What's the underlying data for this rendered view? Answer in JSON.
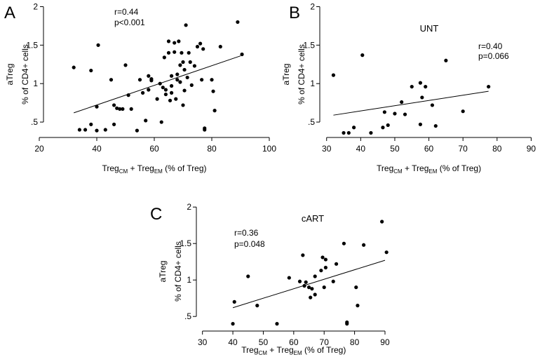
{
  "chart_data": [
    {
      "type": "scatter",
      "panel_letter": "A",
      "title": "",
      "ylabel_line1": "aTreg",
      "ylabel_line2": "% of CD4+ cells",
      "xlabel": {
        "a": "Treg",
        "a_sub": "CM",
        "plus": " + ",
        "b": "Treg",
        "b_sub": "EM",
        "tail": " (% of Treg)"
      },
      "stats": [
        "r=0.44",
        "p<0.001"
      ],
      "xlim": [
        20,
        100
      ],
      "ylim": [
        0.3,
        2.05
      ],
      "x_ticks": [
        20,
        40,
        60,
        80,
        100
      ],
      "x_tick_labels": [
        "20",
        "40",
        "60",
        "80",
        "100"
      ],
      "y_ticks": [
        0.5,
        1,
        1.5,
        2
      ],
      "y_tick_labels": [
        ".5",
        "1",
        "1.5",
        "2"
      ],
      "fit_line": [
        [
          32,
          0.62
        ],
        [
          90,
          1.36
        ]
      ],
      "points": [
        [
          32,
          1.21
        ],
        [
          34,
          0.4
        ],
        [
          36,
          0.4
        ],
        [
          38,
          1.17
        ],
        [
          38,
          0.47
        ],
        [
          40,
          0.39
        ],
        [
          40,
          0.7
        ],
        [
          40.5,
          1.5
        ],
        [
          43,
          0.4
        ],
        [
          45,
          1.05
        ],
        [
          46,
          0.72
        ],
        [
          46,
          0.47
        ],
        [
          47,
          0.68
        ],
        [
          48,
          0.67
        ],
        [
          49,
          0.67
        ],
        [
          50,
          1.24
        ],
        [
          51,
          0.85
        ],
        [
          52,
          0.67
        ],
        [
          54,
          0.39
        ],
        [
          55,
          1.05
        ],
        [
          56,
          0.88
        ],
        [
          57,
          0.52
        ],
        [
          58,
          1.1
        ],
        [
          58,
          0.92
        ],
        [
          59,
          1.04
        ],
        [
          59,
          1.06
        ],
        [
          61,
          0.8
        ],
        [
          62,
          1.0
        ],
        [
          62.5,
          0.5
        ],
        [
          63,
          0.95
        ],
        [
          63.5,
          1.34
        ],
        [
          64,
          0.92
        ],
        [
          64,
          0.86
        ],
        [
          65,
          1.55
        ],
        [
          65,
          1.4
        ],
        [
          65.5,
          0.78
        ],
        [
          66,
          1.1
        ],
        [
          66,
          0.97
        ],
        [
          66,
          0.88
        ],
        [
          67,
          1.53
        ],
        [
          67,
          1.41
        ],
        [
          67.5,
          0.8
        ],
        [
          68,
          1.12
        ],
        [
          68,
          1.05
        ],
        [
          68.5,
          1.55
        ],
        [
          69,
          1.24
        ],
        [
          69,
          1.02
        ],
        [
          69.5,
          1.4
        ],
        [
          70,
          1.28
        ],
        [
          70,
          0.72
        ],
        [
          70.5,
          1.18
        ],
        [
          70.5,
          0.91
        ],
        [
          71,
          1.76
        ],
        [
          71.5,
          1.08
        ],
        [
          72,
          1.4
        ],
        [
          72.5,
          1.28
        ],
        [
          73,
          0.98
        ],
        [
          74,
          1.23
        ],
        [
          75,
          1.48
        ],
        [
          76,
          1.52
        ],
        [
          76.5,
          1.05
        ],
        [
          77,
          1.45
        ],
        [
          77.5,
          0.42
        ],
        [
          77.5,
          0.4
        ],
        [
          80,
          1.05
        ],
        [
          80.5,
          0.9
        ],
        [
          81,
          0.65
        ],
        [
          83,
          1.48
        ],
        [
          89,
          1.8
        ],
        [
          90.5,
          1.38
        ]
      ]
    },
    {
      "type": "scatter",
      "panel_letter": "B",
      "title": "UNT",
      "ylabel_line1": "aTreg",
      "ylabel_line2": "% of CD4+ cells",
      "xlabel": {
        "a": "Treg",
        "a_sub": "CM",
        "plus": " + ",
        "b": "Treg",
        "b_sub": "EM",
        "tail": " (% of Treg)"
      },
      "stats": [
        "r=0.40",
        "p=0.066"
      ],
      "xlim": [
        28,
        93
      ],
      "ylim": [
        0.3,
        2.05
      ],
      "x_ticks": [
        30,
        40,
        50,
        60,
        70,
        80,
        90
      ],
      "x_tick_labels": [
        "30",
        "40",
        "50",
        "60",
        "70",
        "80",
        "90"
      ],
      "y_ticks": [
        0.5,
        1,
        1.5,
        2
      ],
      "y_tick_labels": [
        ".5",
        "1",
        "1.5",
        "2"
      ],
      "fit_line": [
        [
          32,
          0.59
        ],
        [
          77.5,
          0.9
        ]
      ],
      "points": [
        [
          32,
          1.11
        ],
        [
          35,
          0.36
        ],
        [
          36.5,
          0.36
        ],
        [
          38,
          0.43
        ],
        [
          40.5,
          1.37
        ],
        [
          43,
          0.36
        ],
        [
          46.5,
          0.43
        ],
        [
          47,
          0.63
        ],
        [
          48,
          0.46
        ],
        [
          50,
          0.61
        ],
        [
          52,
          0.76
        ],
        [
          53,
          0.6
        ],
        [
          55,
          0.96
        ],
        [
          57.5,
          0.47
        ],
        [
          57.5,
          1.01
        ],
        [
          58,
          0.82
        ],
        [
          59,
          0.96
        ],
        [
          61,
          0.72
        ],
        [
          62,
          0.45
        ],
        [
          65,
          1.3
        ],
        [
          70,
          0.64
        ],
        [
          77.5,
          0.96
        ]
      ]
    },
    {
      "type": "scatter",
      "panel_letter": "C",
      "title": "cART",
      "ylabel_line1": "aTreg",
      "ylabel_line2": "% of CD4+ cells",
      "xlabel": {
        "a": "Treg",
        "a_sub": "CM",
        "plus": " + ",
        "b": "Treg",
        "b_sub": "EM",
        "tail": " (% of Treg)"
      },
      "stats": [
        "r=0.36",
        "p=0.048"
      ],
      "xlim": [
        28,
        93
      ],
      "ylim": [
        0.3,
        2.05
      ],
      "x_ticks": [
        30,
        40,
        50,
        60,
        70,
        80,
        90
      ],
      "x_tick_labels": [
        "30",
        "40",
        "50",
        "60",
        "70",
        "80",
        "90"
      ],
      "y_ticks": [
        0.5,
        1,
        1.5,
        2
      ],
      "y_tick_labels": [
        ".5",
        "1",
        "1.5",
        "2"
      ],
      "fit_line": [
        [
          40,
          0.62
        ],
        [
          90,
          1.27
        ]
      ],
      "points": [
        [
          40,
          0.4
        ],
        [
          40.5,
          0.7
        ],
        [
          45,
          1.05
        ],
        [
          48,
          0.65
        ],
        [
          54.5,
          0.4
        ],
        [
          58.5,
          1.03
        ],
        [
          62,
          0.98
        ],
        [
          63,
          1.34
        ],
        [
          63.5,
          0.92
        ],
        [
          64,
          0.97
        ],
        [
          65,
          0.9
        ],
        [
          65.5,
          0.76
        ],
        [
          66,
          0.88
        ],
        [
          67,
          1.05
        ],
        [
          67,
          0.8
        ],
        [
          69,
          1.13
        ],
        [
          69.5,
          1.31
        ],
        [
          70,
          0.9
        ],
        [
          70.5,
          1.28
        ],
        [
          70.5,
          1.17
        ],
        [
          73,
          0.98
        ],
        [
          74,
          1.22
        ],
        [
          76.5,
          1.5
        ],
        [
          77.5,
          0.42
        ],
        [
          77.5,
          0.4
        ],
        [
          80.5,
          0.9
        ],
        [
          81,
          0.65
        ],
        [
          83,
          1.48
        ],
        [
          89,
          1.8
        ],
        [
          90.5,
          1.38
        ]
      ]
    }
  ]
}
